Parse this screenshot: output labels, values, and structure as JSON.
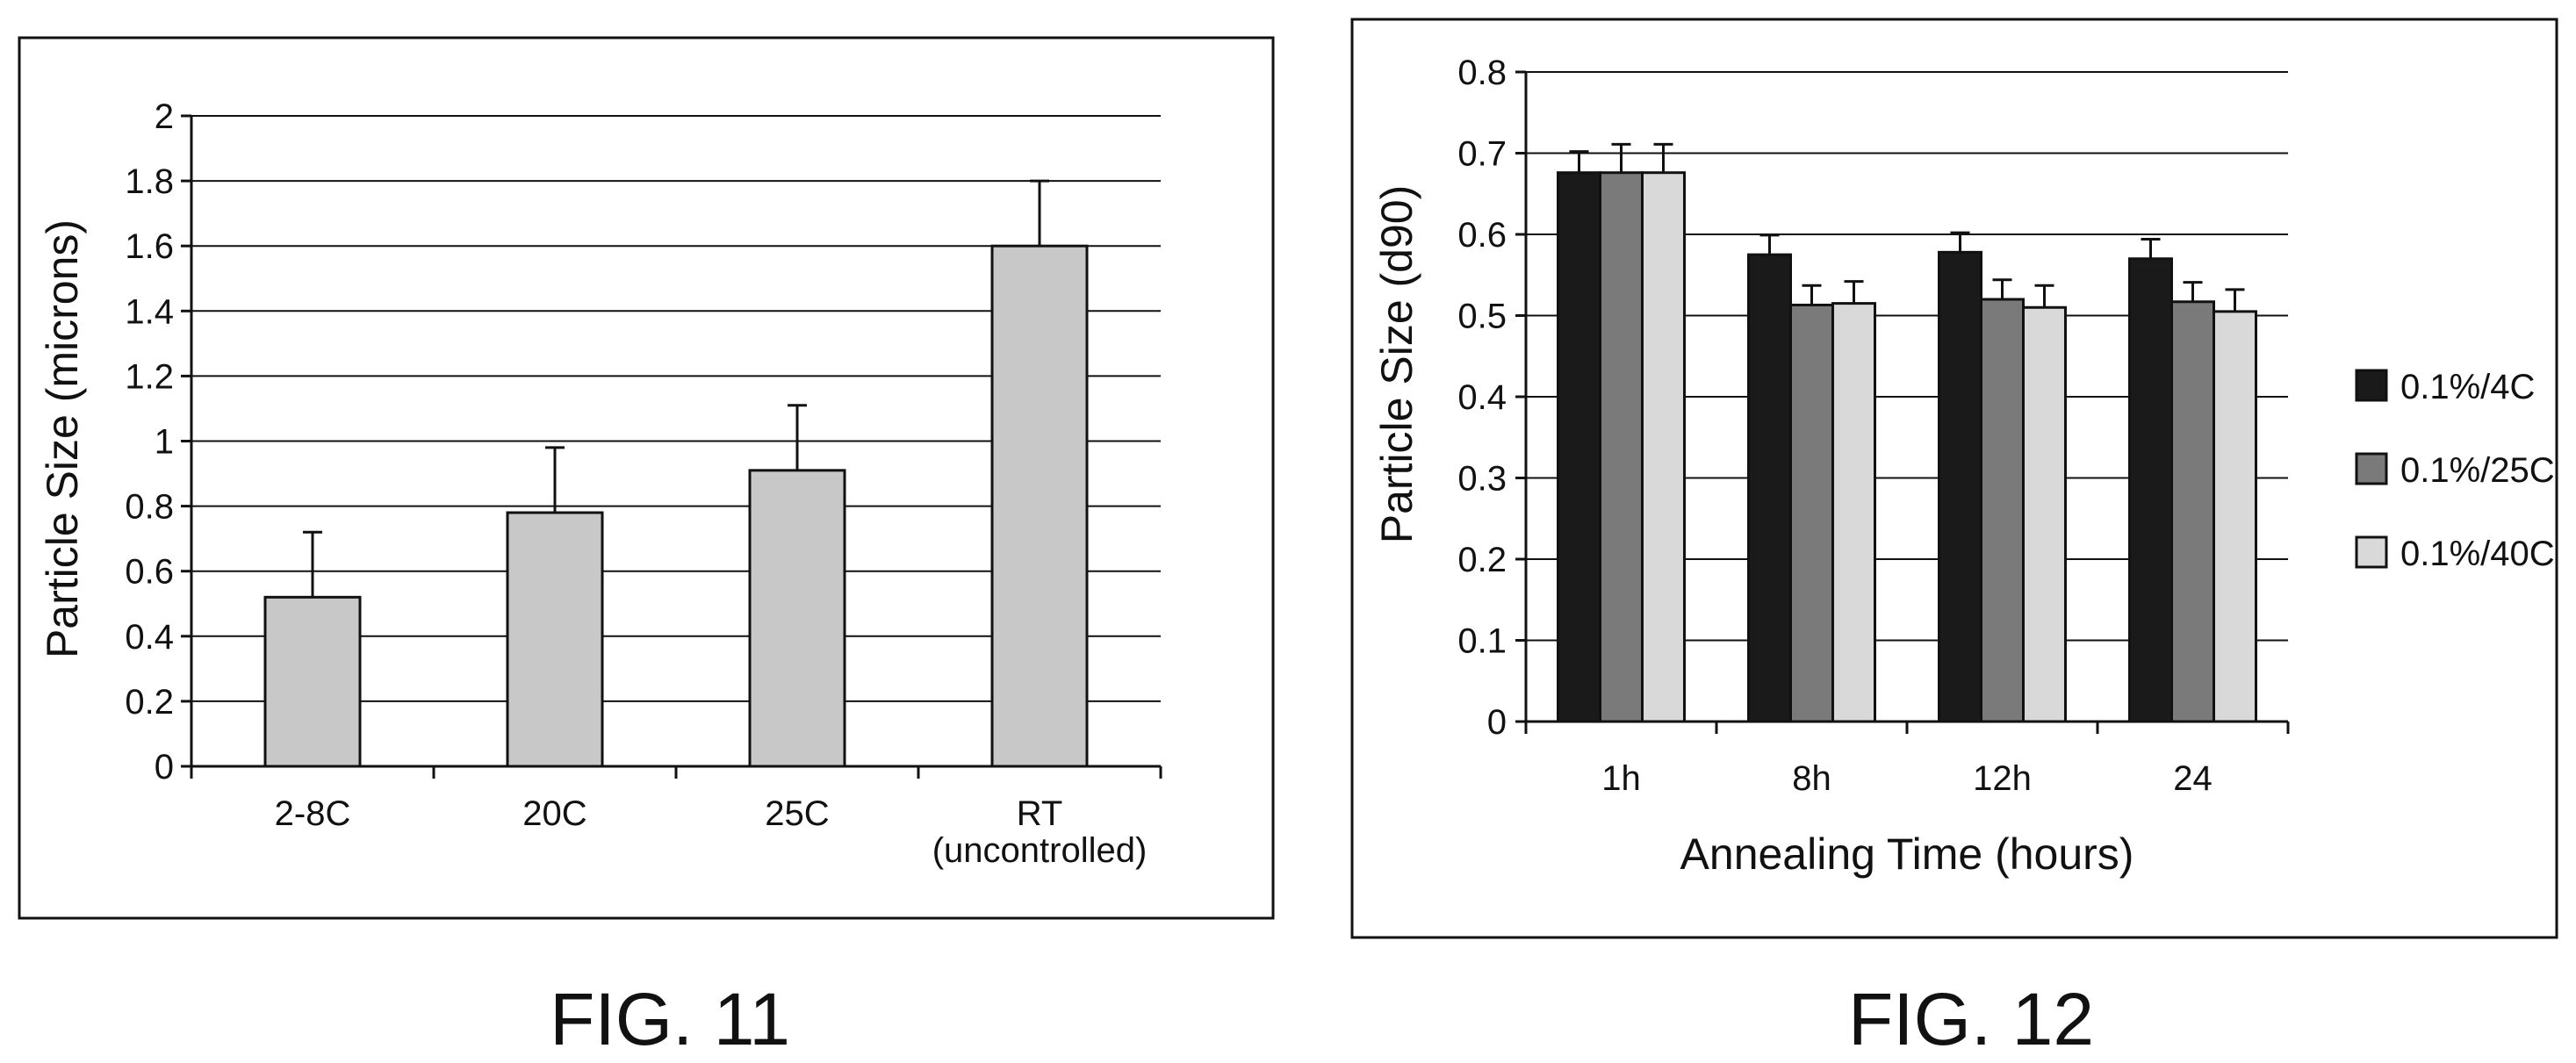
{
  "chart_data": [
    {
      "type": "bar",
      "caption": "FIG. 11",
      "ylabel": "Particle Size (microns)",
      "xlabel": "",
      "ylim": [
        0,
        2
      ],
      "ytick_step": 0.2,
      "yticks": [
        "0",
        "0.2",
        "0.4",
        "0.6",
        "0.8",
        "1",
        "1.2",
        "1.4",
        "1.6",
        "1.8",
        "2"
      ],
      "grid": true,
      "categories": [
        "2-8C",
        "20C",
        "25C",
        "RT (uncontrolled)"
      ],
      "category_lines": [
        [
          "2-8C"
        ],
        [
          "20C"
        ],
        [
          "25C"
        ],
        [
          "RT",
          "(uncontrolled)"
        ]
      ],
      "values": [
        0.52,
        0.78,
        0.91,
        1.6
      ],
      "error": [
        0.2,
        0.2,
        0.2,
        0.2
      ],
      "colors": {
        "bar": "#c8c8c8"
      }
    },
    {
      "type": "bar",
      "caption": "FIG. 12",
      "ylabel": "Particle Size (d90)",
      "xlabel": "Annealing Time (hours)",
      "ylim": [
        0,
        0.8
      ],
      "ytick_step": 0.1,
      "yticks": [
        "0",
        "0.1",
        "0.2",
        "0.3",
        "0.4",
        "0.5",
        "0.6",
        "0.7",
        "0.8"
      ],
      "grid": true,
      "legend": "right",
      "categories": [
        "1h",
        "8h",
        "12h",
        "24"
      ],
      "series": [
        {
          "name": "0.1%/4C",
          "color": "#1a1a1a",
          "values": [
            0.676,
            0.575,
            0.578,
            0.57
          ],
          "error": [
            0.026,
            0.024,
            0.024,
            0.024
          ]
        },
        {
          "name": "0.1%/25C",
          "color": "#7a7a7a",
          "values": [
            0.676,
            0.513,
            0.52,
            0.517
          ],
          "error": [
            0.035,
            0.024,
            0.024,
            0.024
          ]
        },
        {
          "name": "0.1%/40C",
          "color": "#d9d9d9",
          "values": [
            0.676,
            0.515,
            0.51,
            0.505
          ],
          "error": [
            0.035,
            0.027,
            0.027,
            0.027
          ]
        }
      ]
    }
  ]
}
